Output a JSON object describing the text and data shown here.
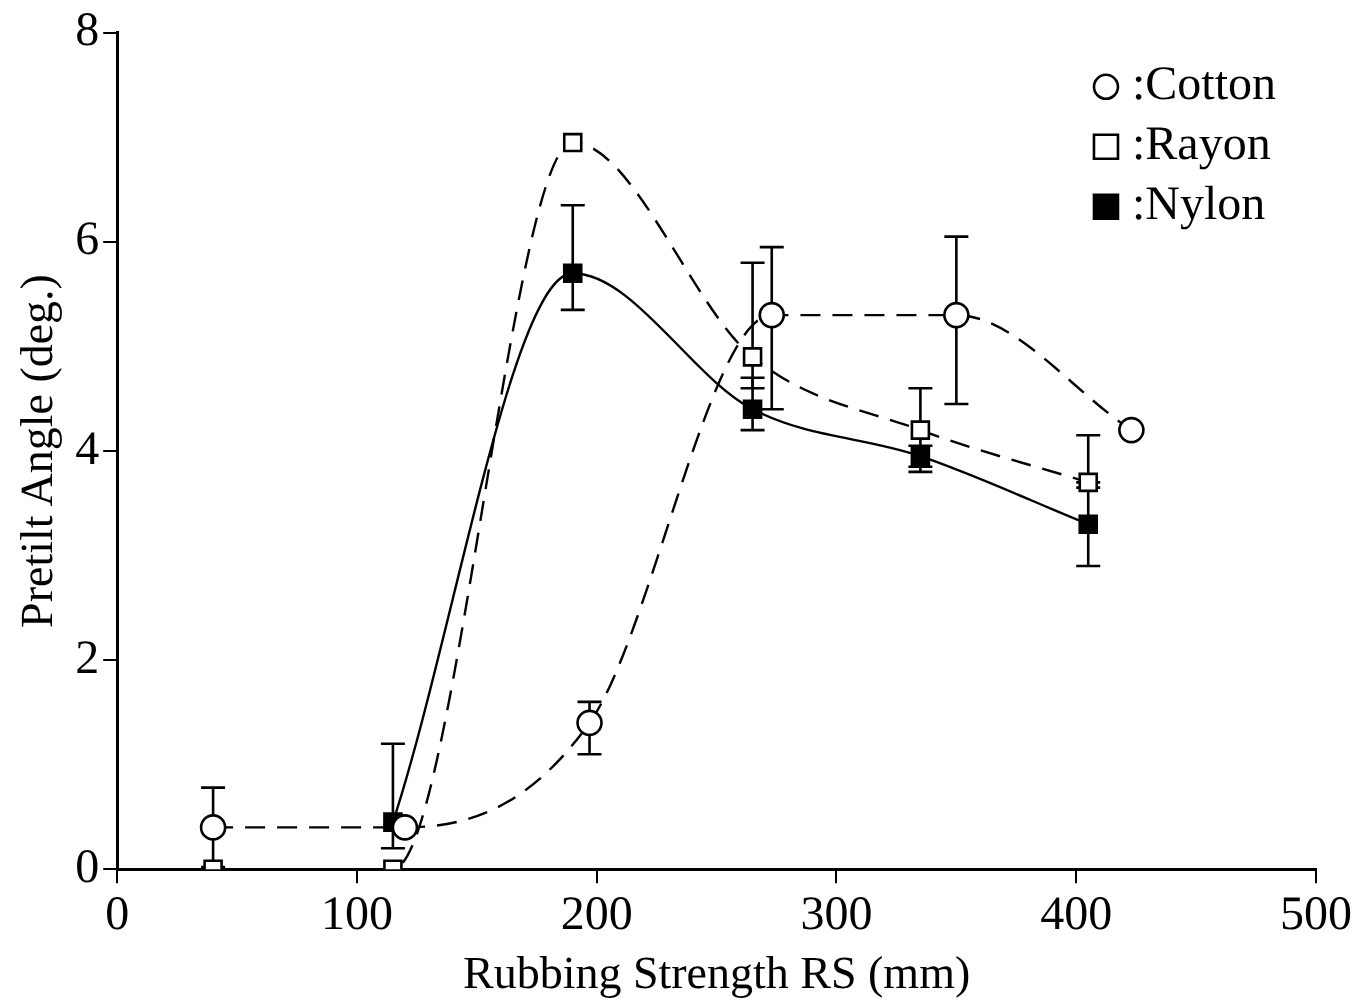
{
  "chart_data": {
    "type": "line",
    "xlabel": "Rubbing Strength RS (mm)",
    "ylabel": "Pretilt Angle (deg.)",
    "xlim": [
      0,
      500
    ],
    "xticks": [
      0,
      100,
      200,
      300,
      400,
      500
    ],
    "ylim": [
      0,
      8
    ],
    "yticks": [
      0,
      2,
      4,
      6,
      8
    ],
    "grid": false,
    "legend": "top right",
    "series": [
      {
        "name": ":Cotton",
        "color": "#000000",
        "marker": "circle",
        "line_style": "dashed",
        "x": [
          40,
          120,
          197,
          273,
          350,
          423
        ],
        "values": [
          0.4,
          0.4,
          1.4,
          5.3,
          5.3,
          4.2
        ],
        "errors": [
          [
            0.02,
            0.78
          ],
          null,
          [
            1.1,
            1.6
          ],
          [
            4.4,
            5.95
          ],
          [
            4.45,
            6.05
          ],
          null
        ]
      },
      {
        "name": ":Rayon",
        "color": "#000000",
        "marker": "square",
        "line_style": "dashed",
        "x": [
          40,
          115,
          190,
          265,
          335,
          405
        ],
        "values": [
          0,
          0,
          6.95,
          4.9,
          4.2,
          3.7
        ],
        "errors": [
          null,
          null,
          null,
          [
            4.6,
            5.8
          ],
          [
            3.85,
            4.6
          ],
          [
            3.7,
            4.15
          ]
        ]
      },
      {
        "name": ":Nylon",
        "color": "#000000",
        "marker": "square",
        "line_style": "solid",
        "x": [
          115,
          190,
          265,
          335,
          405
        ],
        "values": [
          0.45,
          5.7,
          4.4,
          3.95,
          3.3
        ],
        "errors": [
          [
            0.2,
            1.2
          ],
          [
            5.35,
            6.35
          ],
          [
            4.2,
            4.7
          ],
          [
            3.8,
            4.05
          ],
          [
            2.9,
            3.65
          ]
        ]
      }
    ]
  }
}
